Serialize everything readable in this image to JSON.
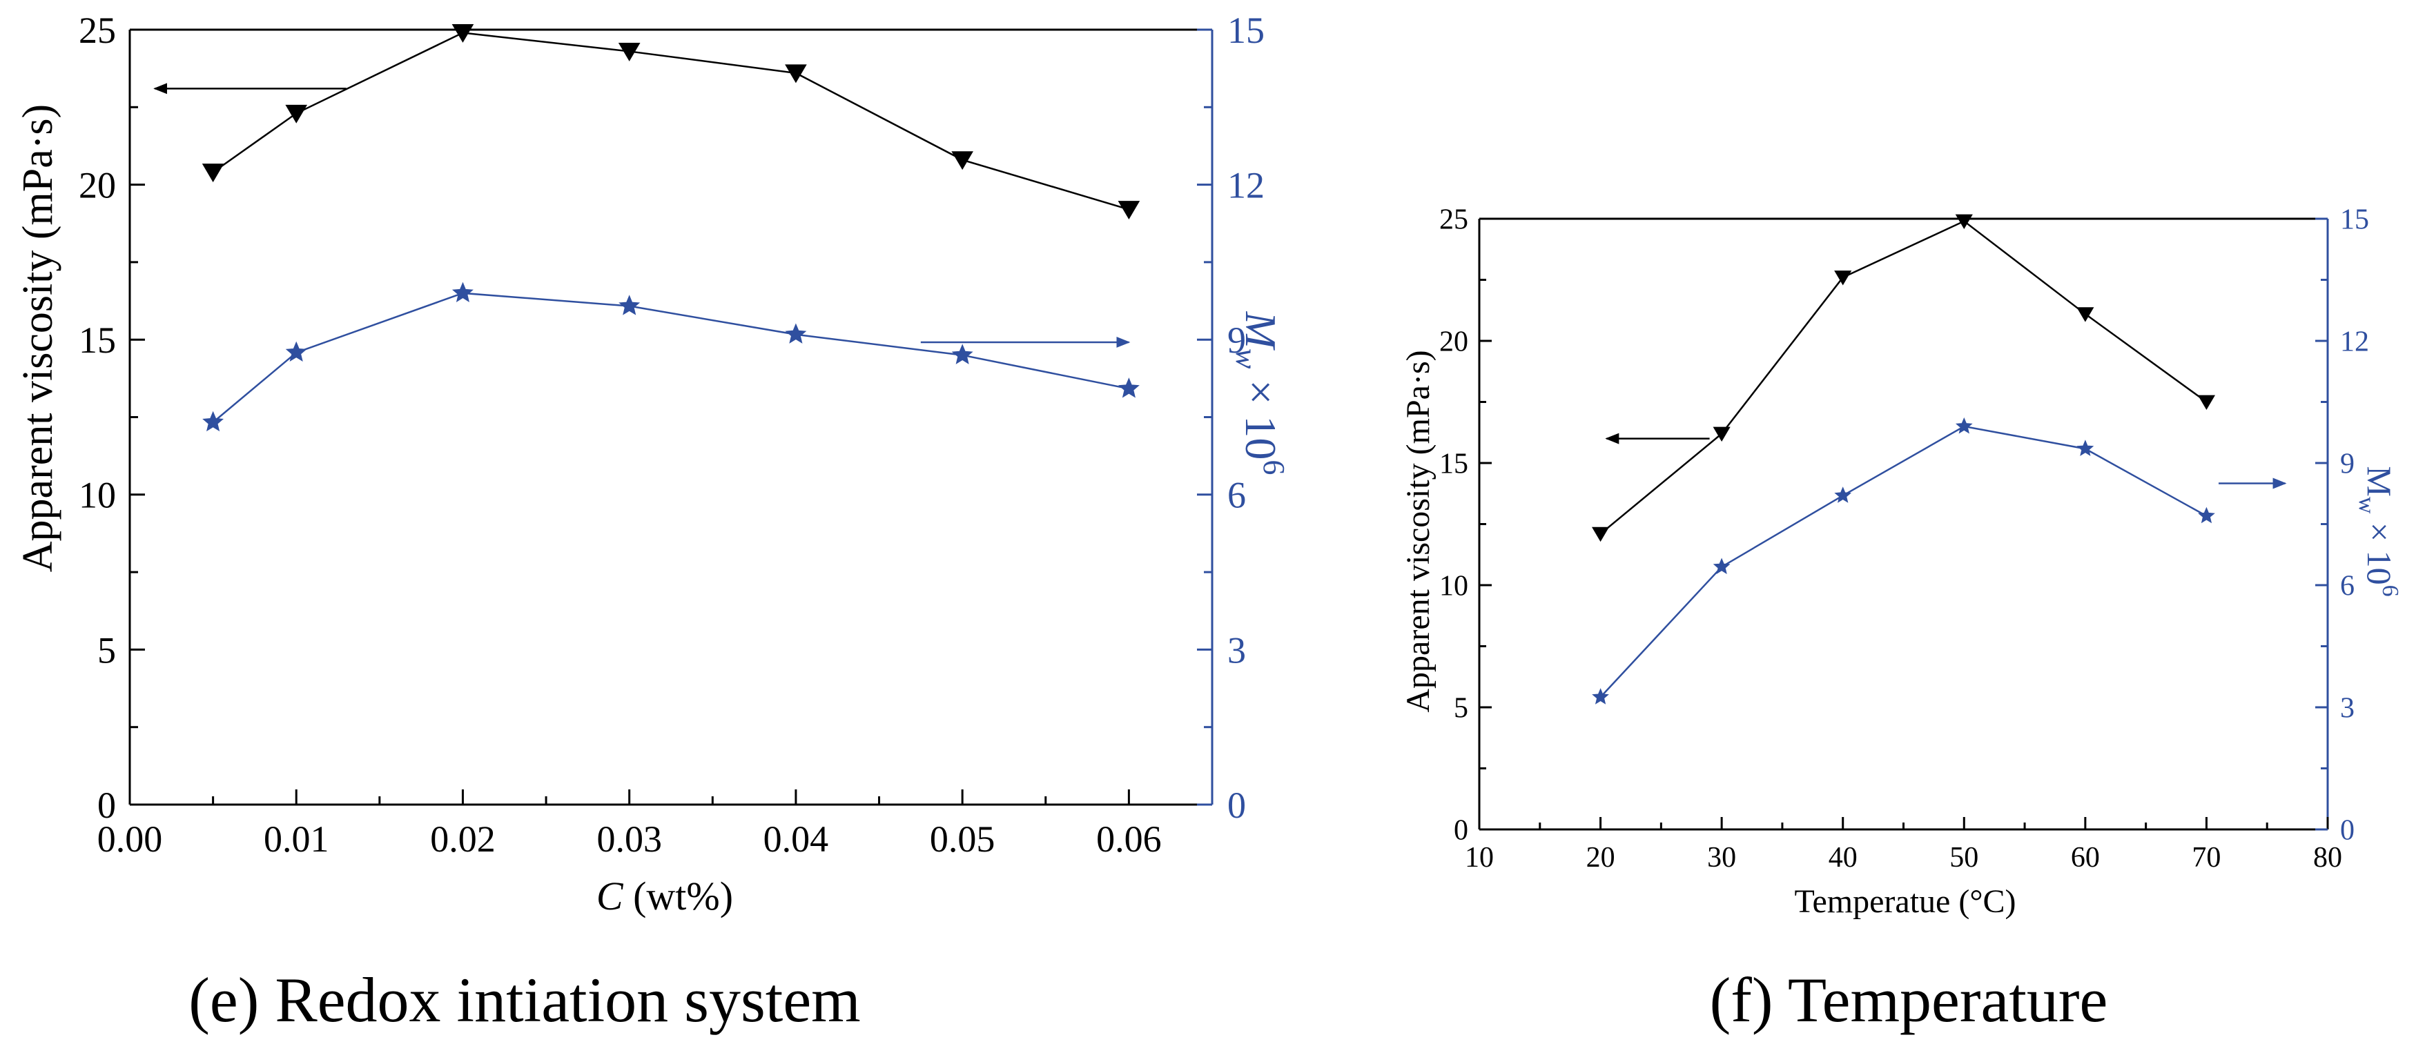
{
  "chart_data": [
    {
      "type": "line",
      "panel": "e",
      "caption": "(e) Redox intiation system",
      "xlabel_var": "C",
      "xlabel_unit": " (wt%)",
      "ylabel": "Apparent viscosity (mPa·s)",
      "y2label_M": "M",
      "y2label_sub": "w",
      "y2label_times": " × 10",
      "y2label_sup": "6",
      "xlim": [
        0,
        0.065
      ],
      "ylim": [
        0,
        25
      ],
      "y2lim": [
        0,
        15
      ],
      "x_ticks": [
        0,
        0.01,
        0.02,
        0.03,
        0.04,
        0.05,
        0.06
      ],
      "x_tick_labels": [
        "0.00",
        "0.01",
        "0.02",
        "0.03",
        "0.04",
        "0.05",
        "0.06"
      ],
      "y_ticks": [
        0,
        5,
        10,
        15,
        20,
        25
      ],
      "y_tick_labels": [
        "0",
        "5",
        "10",
        "15",
        "20",
        "25"
      ],
      "y2_ticks": [
        0,
        3,
        6,
        9,
        12,
        15
      ],
      "y2_tick_labels": [
        "0",
        "3",
        "6",
        "9",
        "12",
        "15"
      ],
      "series": [
        {
          "name": "Apparent viscosity",
          "axis": "left",
          "color": "#000000",
          "marker": "triangle-down",
          "x": [
            0.005,
            0.01,
            0.02,
            0.03,
            0.04,
            0.05,
            0.06
          ],
          "values": [
            20.4,
            22.3,
            24.9,
            24.3,
            23.6,
            20.8,
            19.2
          ]
        },
        {
          "name": "Mw × 10^6",
          "axis": "right",
          "color": "#2f4f9f",
          "marker": "star",
          "x": [
            0.005,
            0.01,
            0.02,
            0.03,
            0.04,
            0.05,
            0.06
          ],
          "values": [
            7.4,
            8.75,
            9.9,
            9.65,
            9.1,
            8.7,
            8.05
          ]
        }
      ],
      "annotations": [
        {
          "type": "arrow",
          "points_to": "left-axis",
          "series": "Apparent viscosity",
          "x_from": 0.013,
          "x_to": 0.0015,
          "y": 23.1
        },
        {
          "type": "arrow",
          "points_to": "right-axis",
          "series": "Mw × 10^6",
          "x_from": 0.0475,
          "x_to": 0.06,
          "y2": 8.95
        }
      ]
    },
    {
      "type": "line",
      "panel": "f",
      "caption": "(f) Temperature",
      "xlabel": "Temperatue (°C)",
      "ylabel": "Apparent viscosity (mPa·s)",
      "y2label_M": "M",
      "y2label_sub": "w",
      "y2label_times": " × 10",
      "y2label_sup": "6",
      "xlim": [
        10,
        80
      ],
      "ylim": [
        0,
        25
      ],
      "y2lim": [
        0,
        15
      ],
      "x_ticks": [
        10,
        20,
        30,
        40,
        50,
        60,
        70,
        80
      ],
      "x_tick_labels": [
        "10",
        "20",
        "30",
        "40",
        "50",
        "60",
        "70",
        "80"
      ],
      "y_ticks": [
        0,
        5,
        10,
        15,
        20,
        25
      ],
      "y_tick_labels": [
        "0",
        "5",
        "10",
        "15",
        "20",
        "25"
      ],
      "y2_ticks": [
        0,
        3,
        6,
        9,
        12,
        15
      ],
      "y2_tick_labels": [
        "0",
        "3",
        "6",
        "9",
        "12",
        "15"
      ],
      "series": [
        {
          "name": "Apparent viscosity",
          "axis": "left",
          "color": "#000000",
          "marker": "triangle-down",
          "x": [
            20,
            30,
            40,
            50,
            60,
            70
          ],
          "values": [
            12.1,
            16.2,
            22.6,
            24.9,
            21.1,
            17.5
          ]
        },
        {
          "name": "Mw × 10^6",
          "axis": "right",
          "color": "#2f4f9f",
          "marker": "star",
          "x": [
            20,
            30,
            40,
            50,
            60,
            70
          ],
          "values": [
            3.25,
            6.45,
            8.2,
            9.9,
            9.35,
            7.7
          ]
        }
      ],
      "annotations": [
        {
          "type": "arrow",
          "points_to": "left-axis",
          "series": "Apparent viscosity",
          "x_from": 29,
          "x_to": 20.5,
          "y": 16.0
        },
        {
          "type": "arrow",
          "points_to": "right-axis",
          "series": "Mw × 10^6",
          "x_from": 71,
          "x_to": 76.5,
          "y2": 8.5
        }
      ]
    }
  ]
}
